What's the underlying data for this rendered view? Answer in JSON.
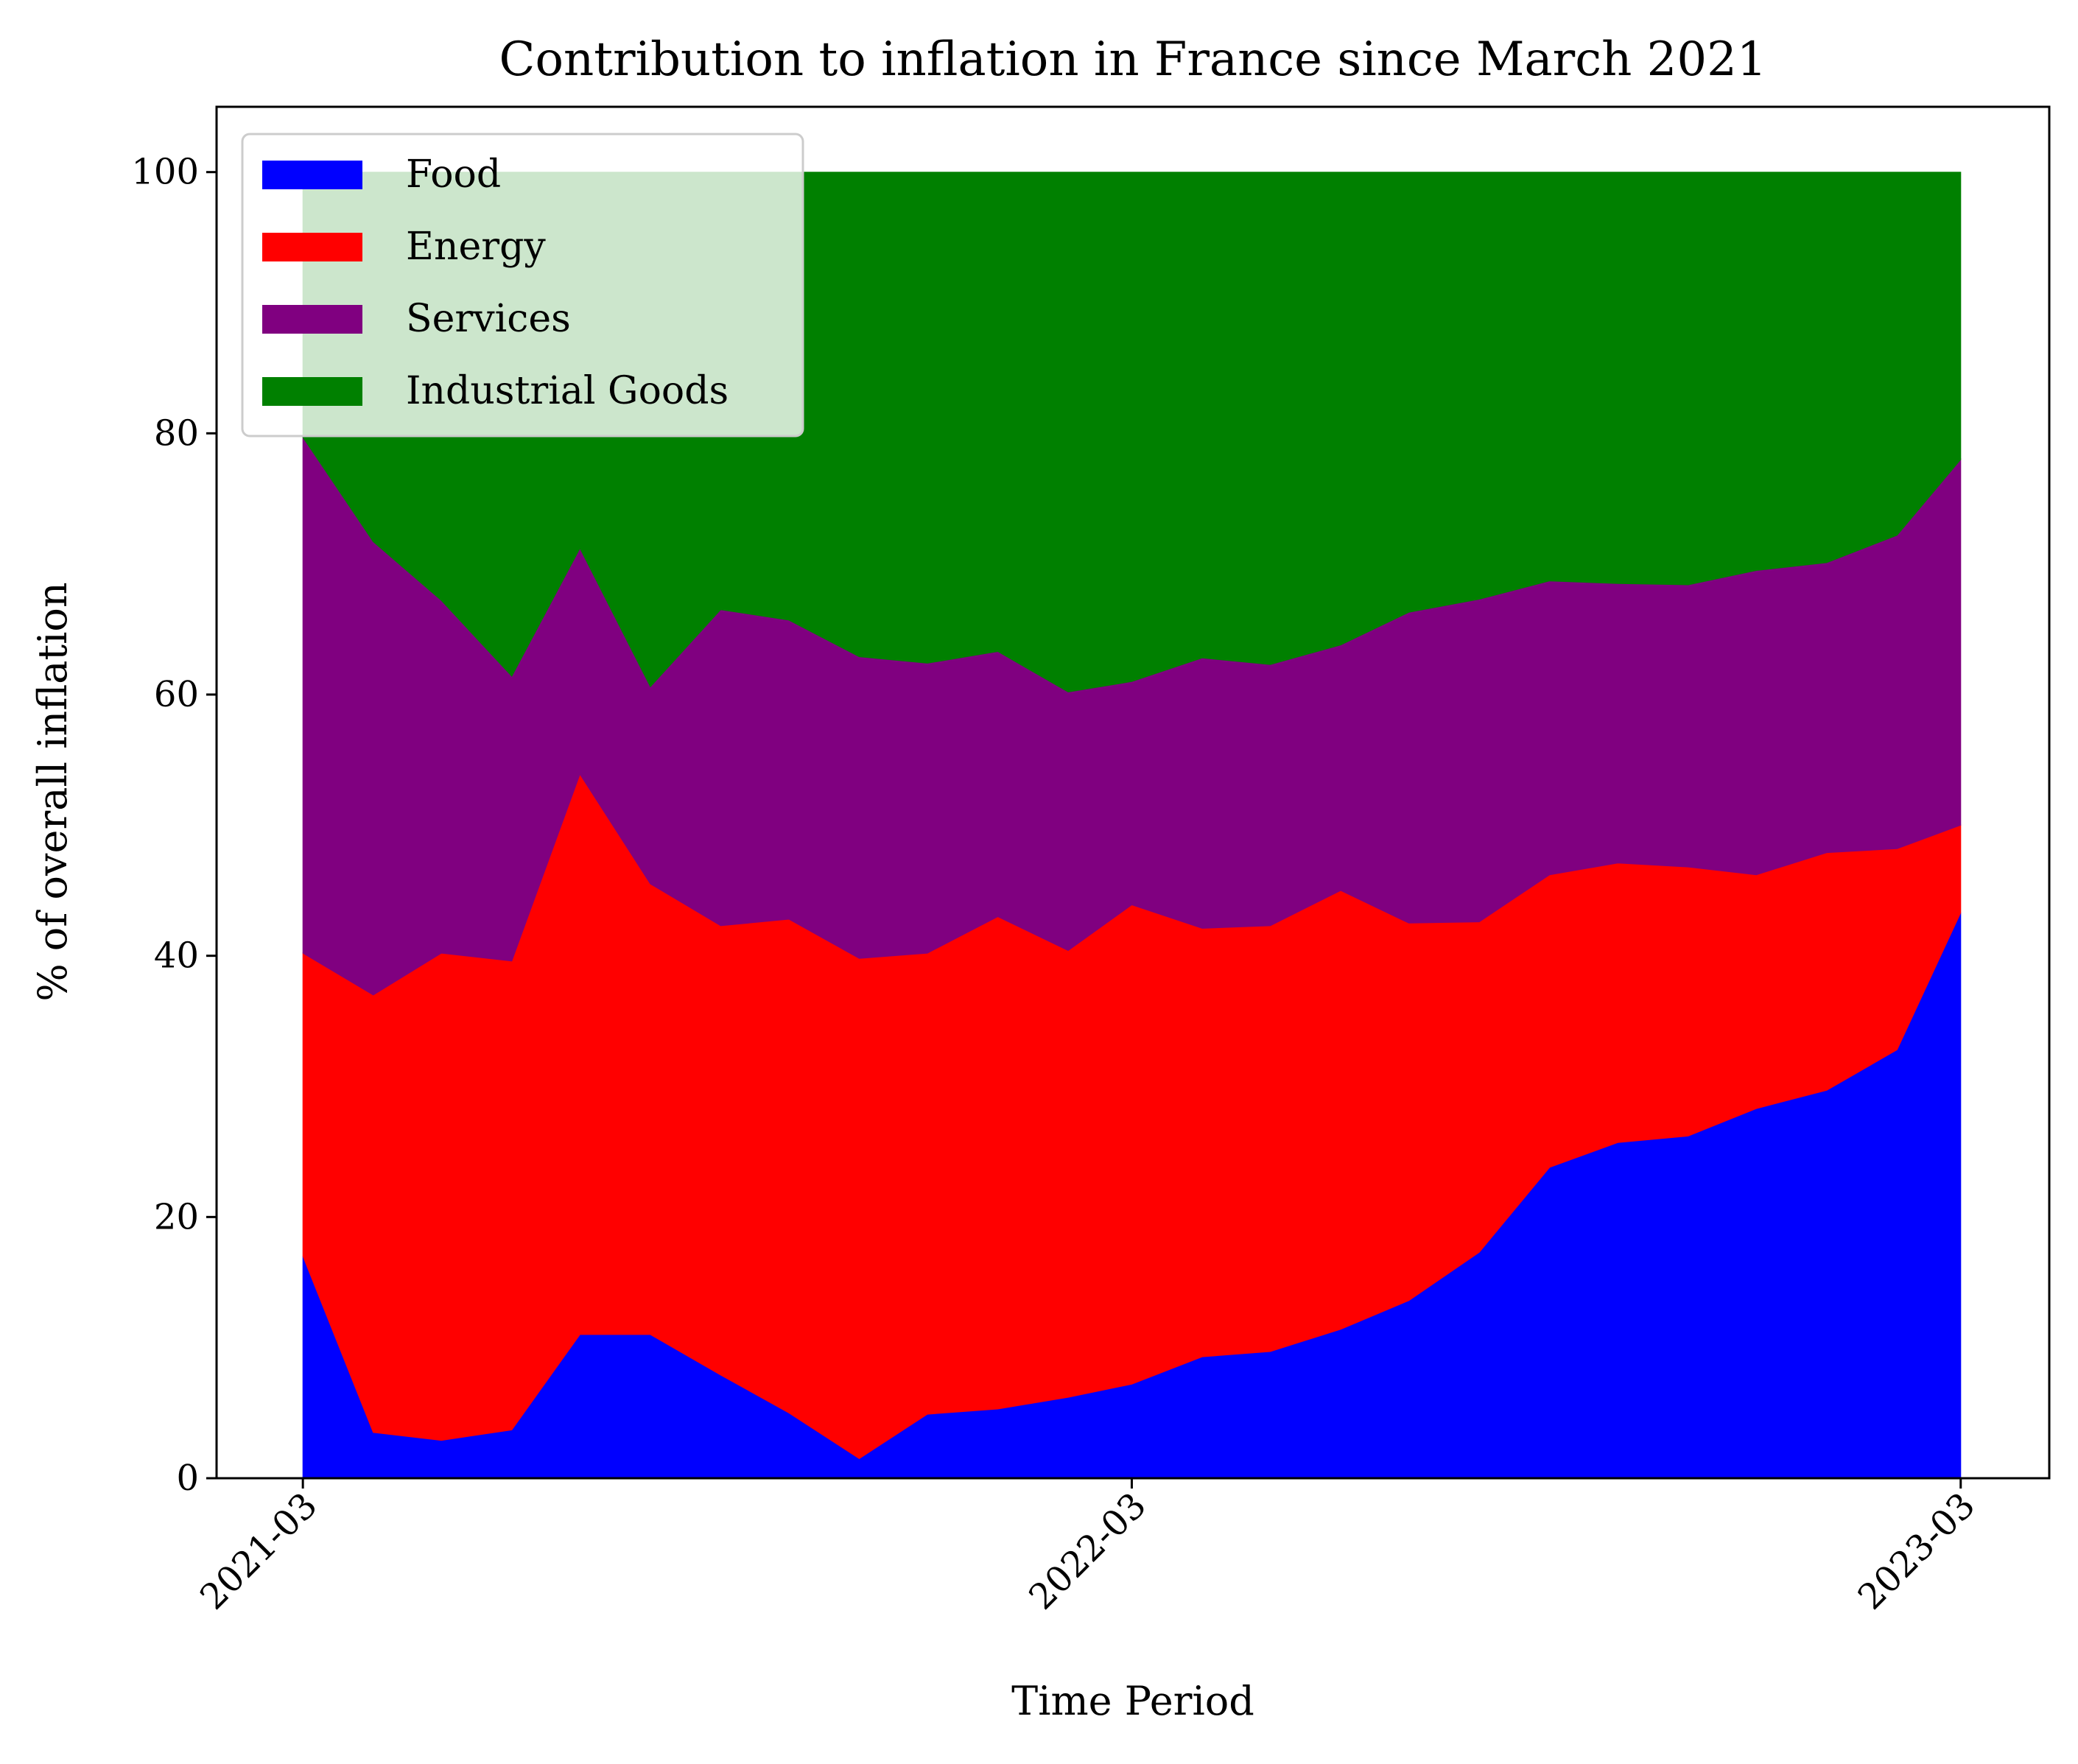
{
  "chart_data": {
    "type": "area",
    "stacked": true,
    "title": "Contribution to inflation in France since March 2021",
    "xlabel": "Time Period",
    "ylabel": "% of overall inflation",
    "ylim": [
      0,
      105
    ],
    "xlim": [
      "2021-01-22",
      "2023-04-09"
    ],
    "x": [
      "2021-03",
      "2021-04",
      "2021-05",
      "2021-06",
      "2021-07",
      "2021-08",
      "2021-09",
      "2021-10",
      "2021-11",
      "2021-12",
      "2022-01",
      "2022-02",
      "2022-03",
      "2022-04",
      "2022-05",
      "2022-06",
      "2022-07",
      "2022-08",
      "2022-09",
      "2022-10",
      "2022-11",
      "2022-12",
      "2023-01",
      "2023-02",
      "2023-03"
    ],
    "xticks": [
      "2021-03",
      "2022-03",
      "2023-03"
    ],
    "yticks": [
      0,
      20,
      40,
      60,
      80,
      100
    ],
    "grid": false,
    "legend_position": "upper-left",
    "series": [
      {
        "name": "Food",
        "color": "#0000ff",
        "values": [
          17.0,
          3.5,
          2.9,
          3.7,
          11.0,
          11.0,
          7.9,
          5.0,
          1.5,
          4.9,
          5.3,
          6.2,
          7.2,
          9.3,
          9.7,
          11.4,
          13.6,
          17.3,
          23.8,
          25.7,
          26.2,
          28.3,
          29.7,
          32.8,
          43.3
        ]
      },
      {
        "name": "Energy",
        "color": "#ff0000",
        "values": [
          23.2,
          33.5,
          37.3,
          35.9,
          42.9,
          34.5,
          34.4,
          37.8,
          38.3,
          35.3,
          37.7,
          34.2,
          36.7,
          32.8,
          32.6,
          33.6,
          28.9,
          25.3,
          22.4,
          21.4,
          20.6,
          17.9,
          18.2,
          15.4,
          6.7
        ]
      },
      {
        "name": "Services",
        "color": "#800080",
        "values": [
          39.5,
          34.7,
          27.0,
          21.8,
          17.3,
          15.1,
          24.2,
          22.9,
          23.1,
          22.2,
          20.3,
          19.8,
          17.1,
          20.7,
          20.0,
          18.8,
          23.8,
          24.7,
          22.5,
          21.4,
          21.6,
          23.3,
          22.2,
          24.0,
          28.0
        ]
      },
      {
        "name": "Industrial Goods",
        "color": "#008000",
        "values": [
          20.3,
          28.3,
          32.8,
          38.6,
          28.8,
          39.4,
          33.5,
          34.3,
          37.1,
          37.6,
          36.7,
          39.8,
          39.0,
          37.2,
          37.7,
          36.2,
          33.7,
          32.7,
          31.3,
          31.5,
          31.6,
          30.5,
          29.9,
          27.8,
          22.0
        ]
      }
    ]
  }
}
